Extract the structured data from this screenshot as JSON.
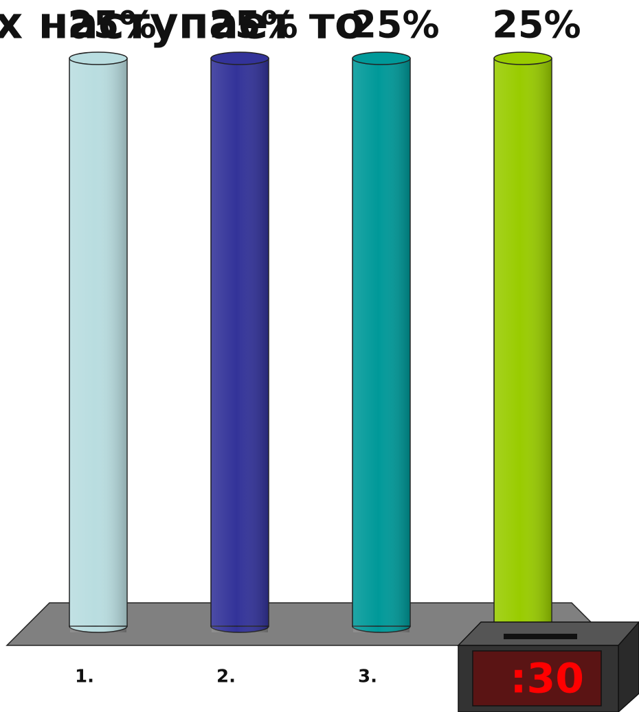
{
  "chart_data": {
    "type": "bar",
    "title": "х наступает то",
    "categories": [
      "1.",
      "2.",
      "3.",
      null
    ],
    "values": [
      25,
      25,
      25,
      25
    ],
    "value_labels": [
      "25%",
      "25%",
      "25%",
      "25%"
    ],
    "colors": [
      "#b9dde0",
      "#333399",
      "#009999",
      "#99cc00"
    ],
    "ylim": [
      0,
      25
    ]
  },
  "timer": {
    "text": ":30"
  }
}
